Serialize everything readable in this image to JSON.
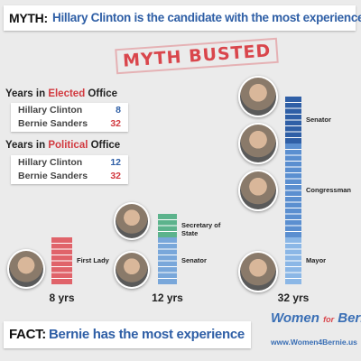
{
  "myth": {
    "label": "MYTH:",
    "text": "Hillary Clinton is the candidate with the most experience"
  },
  "stamp": "MYTH BUSTED",
  "tables": [
    {
      "prefix": "Years in ",
      "highlight": "Elected",
      "suffix": " Office",
      "rows": [
        {
          "name": "Hillary Clinton",
          "years": 8
        },
        {
          "name": "Bernie Sanders",
          "years": 32
        }
      ]
    },
    {
      "prefix": "Years in ",
      "highlight": "Political",
      "suffix": " Office",
      "rows": [
        {
          "name": "Hillary Clinton",
          "years": 12
        },
        {
          "name": "Bernie Sanders",
          "years": 32
        }
      ]
    }
  ],
  "columns": [
    {
      "label": "8 yrs",
      "segments": [
        {
          "name": "First Lady",
          "years": 8,
          "color": "#e0636a"
        }
      ]
    },
    {
      "label": "12 yrs",
      "segments": [
        {
          "name": "Senator",
          "years": 8,
          "color": "#79a7da"
        },
        {
          "name": "Secretary of State",
          "years": 4,
          "color": "#5cb38c"
        }
      ]
    },
    {
      "label": "32 yrs",
      "segments": [
        {
          "name": "Mayor",
          "years": 8,
          "color": "#8bb7e6"
        },
        {
          "name": "Congressman",
          "years": 16,
          "color": "#5b8fd0"
        },
        {
          "name": "Senator",
          "years": 8,
          "color": "#2f5fa6"
        }
      ]
    }
  ],
  "fact": {
    "label": "FACT:",
    "text": "Bernie has the most experience"
  },
  "logo": {
    "women": "Women",
    "for": "for",
    "bernie": "Bernie",
    "url": "www.Women4Bernie.us"
  }
}
